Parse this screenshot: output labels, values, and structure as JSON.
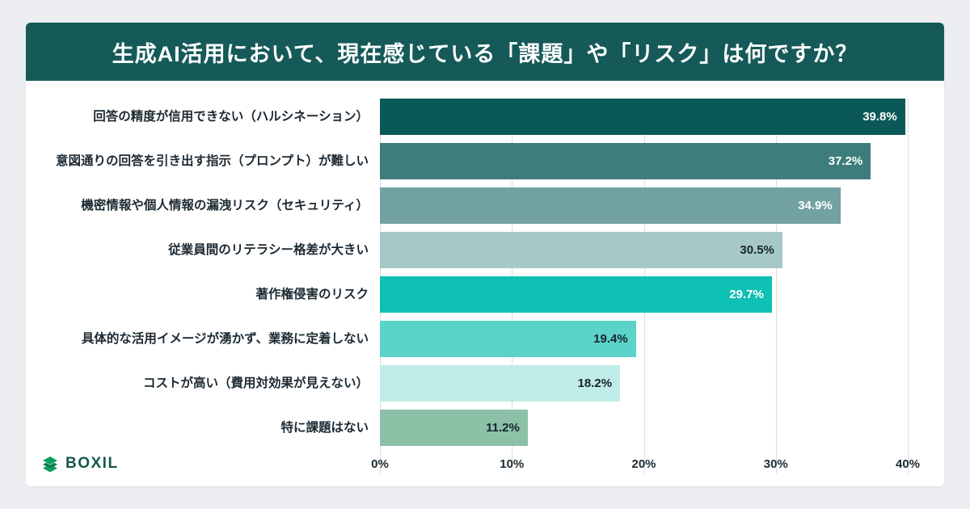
{
  "header": {
    "title": "生成AI活用において、現在感じている「課題」や「リスク」は何ですか？",
    "bg_color": "#155a58"
  },
  "chart_data": {
    "type": "bar",
    "orientation": "horizontal",
    "title": "生成AI活用において、現在感じている「課題」や「リスク」は何ですか？",
    "categories": [
      "回答の精度が信用できない（ハルシネーション）",
      "意図通りの回答を引き出す指示（プロンプト）が難しい",
      "機密情報や個人情報の漏洩リスク（セキュリティ）",
      "従業員間のリテラシー格差が大きい",
      "著作権侵害のリスク",
      "具体的な活用イメージが湧かず、業務に定着しない",
      "コストが高い（費用対効果が見えない）",
      "特に課題はない"
    ],
    "values": [
      39.8,
      37.2,
      34.9,
      30.5,
      29.7,
      19.4,
      18.2,
      11.2
    ],
    "value_labels": [
      "39.8%",
      "37.2%",
      "34.9%",
      "30.5%",
      "29.7%",
      "19.4%",
      "18.2%",
      "11.2%"
    ],
    "bar_colors": [
      "#0b5957",
      "#3d7d7c",
      "#72a2a1",
      "#a6c8c7",
      "#0fc0b4",
      "#5bd3c8",
      "#bfece6",
      "#8cc1a8"
    ],
    "value_label_colors": [
      "#ffffff",
      "#ffffff",
      "#ffffff",
      "#16242c",
      "#ffffff",
      "#16242c",
      "#16242c",
      "#16242c"
    ],
    "xlabel": "",
    "ylabel": "",
    "xlim": [
      0,
      40
    ],
    "x_ticks": [
      "0%",
      "10%",
      "20%",
      "30%",
      "40%"
    ],
    "x_tick_values": [
      0,
      10,
      20,
      30,
      40
    ],
    "grid": true,
    "grid_color": "#d9dde2",
    "legend": false
  },
  "footer": {
    "logo_text": "BOXIL",
    "logo_green": "#0ba05d",
    "logo_green_dark": "#0a7d4e"
  }
}
